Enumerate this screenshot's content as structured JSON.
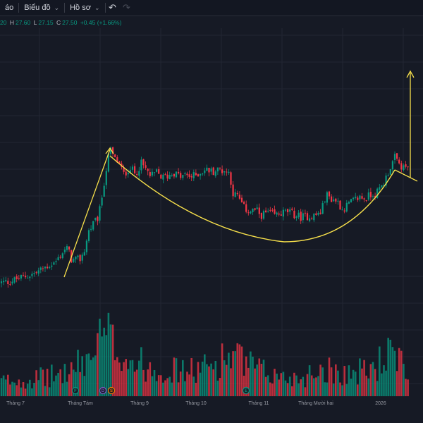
{
  "toolbar": {
    "items": [
      {
        "label": "áo",
        "dropdown": false
      },
      {
        "label": "Biểu đồ",
        "dropdown": true
      },
      {
        "label": "Hồ sơ",
        "dropdown": true
      }
    ],
    "undo_icon": "undo-icon",
    "redo_icon": "redo-icon"
  },
  "ohlc": {
    "open_partial": "20",
    "h_key": "H",
    "h": "27.60",
    "l_key": "L",
    "l": "27.15",
    "c_key": "C",
    "c": "27.50",
    "change": "+0.45 (+1.66%)"
  },
  "colors": {
    "background": "#161a25",
    "up": "#089981",
    "down": "#f23645",
    "annotation": "#f7e04b",
    "grid": "#222632"
  },
  "chart_data": {
    "type": "candlestick",
    "y_axis_visible": false,
    "x_labels": [
      "Tháng 7",
      "Tháng Tám",
      "Tháng 9",
      "Tháng 10",
      "Tháng 11",
      "Tháng Mười hai",
      "2026"
    ],
    "events": [
      {
        "label": "F",
        "color": "#089981"
      },
      {
        "label": "D",
        "color": "#7e57c2"
      },
      {
        "label": "S",
        "color": "#f57c00"
      },
      {
        "label": "E",
        "color": "#089981"
      }
    ],
    "annotations": [
      "rally-arrow",
      "cup-curve",
      "handle-line",
      "breakout-arrow"
    ],
    "price_path": [
      [
        0,
        11.8
      ],
      [
        12,
        11.9
      ],
      [
        24,
        12.2
      ],
      [
        36,
        12.5
      ],
      [
        48,
        12.8
      ],
      [
        58,
        13.2
      ],
      [
        66,
        13.6
      ],
      [
        72,
        13.8
      ],
      [
        78,
        14.0
      ],
      [
        84,
        14.6
      ],
      [
        90,
        15.3
      ],
      [
        96,
        15.6
      ],
      [
        102,
        14.2
      ],
      [
        108,
        14.3
      ],
      [
        114,
        14.4
      ],
      [
        120,
        15.4
      ],
      [
        126,
        17.5
      ],
      [
        132,
        18.2
      ],
      [
        140,
        19.0
      ],
      [
        146,
        22.0
      ],
      [
        152,
        24.8
      ],
      [
        156,
        26.5
      ],
      [
        162,
        25.4
      ],
      [
        168,
        25.0
      ],
      [
        176,
        23.6
      ],
      [
        184,
        24.5
      ],
      [
        192,
        23.7
      ],
      [
        200,
        24.9
      ],
      [
        206,
        24.3
      ],
      [
        214,
        23.4
      ],
      [
        222,
        23.9
      ],
      [
        230,
        23.3
      ],
      [
        238,
        23.5
      ],
      [
        246,
        23.9
      ],
      [
        256,
        23.4
      ],
      [
        264,
        23.6
      ],
      [
        272,
        23.4
      ],
      [
        282,
        23.8
      ],
      [
        292,
        24.2
      ],
      [
        302,
        24.0
      ],
      [
        310,
        24.2
      ],
      [
        318,
        24.1
      ],
      [
        326,
        23.8
      ],
      [
        330,
        21.6
      ],
      [
        338,
        21.2
      ],
      [
        346,
        20.0
      ],
      [
        354,
        19.6
      ],
      [
        362,
        19.8
      ],
      [
        370,
        19.2
      ],
      [
        380,
        19.5
      ],
      [
        390,
        19.2
      ],
      [
        398,
        19.4
      ],
      [
        408,
        19.6
      ],
      [
        416,
        19.3
      ],
      [
        426,
        19.0
      ],
      [
        434,
        19.1
      ],
      [
        440,
        19.1
      ],
      [
        448,
        19.2
      ],
      [
        456,
        19.6
      ],
      [
        462,
        21.5
      ],
      [
        470,
        21.0
      ],
      [
        478,
        20.8
      ],
      [
        486,
        19.8
      ],
      [
        494,
        20.4
      ],
      [
        502,
        20.8
      ],
      [
        510,
        21.2
      ],
      [
        518,
        21.0
      ],
      [
        526,
        21.5
      ],
      [
        534,
        21.6
      ],
      [
        540,
        22.2
      ],
      [
        546,
        23.0
      ],
      [
        552,
        24.2
      ],
      [
        560,
        25.5
      ],
      [
        566,
        24.8
      ],
      [
        572,
        24.3
      ],
      [
        580,
        24.6
      ]
    ],
    "volume_profile": [
      [
        0,
        0.2
      ],
      [
        40,
        0.22
      ],
      [
        80,
        0.28
      ],
      [
        100,
        0.34
      ],
      [
        118,
        0.45
      ],
      [
        130,
        0.55
      ],
      [
        140,
        0.7
      ],
      [
        150,
        0.8
      ],
      [
        160,
        0.7
      ],
      [
        172,
        0.6
      ],
      [
        190,
        0.45
      ],
      [
        210,
        0.4
      ],
      [
        240,
        0.35
      ],
      [
        270,
        0.33
      ],
      [
        300,
        0.4
      ],
      [
        325,
        0.55
      ],
      [
        345,
        0.45
      ],
      [
        370,
        0.33
      ],
      [
        400,
        0.25
      ],
      [
        430,
        0.25
      ],
      [
        455,
        0.38
      ],
      [
        470,
        0.35
      ],
      [
        500,
        0.3
      ],
      [
        530,
        0.38
      ],
      [
        550,
        0.55
      ],
      [
        570,
        0.4
      ],
      [
        580,
        0.32
      ]
    ]
  }
}
